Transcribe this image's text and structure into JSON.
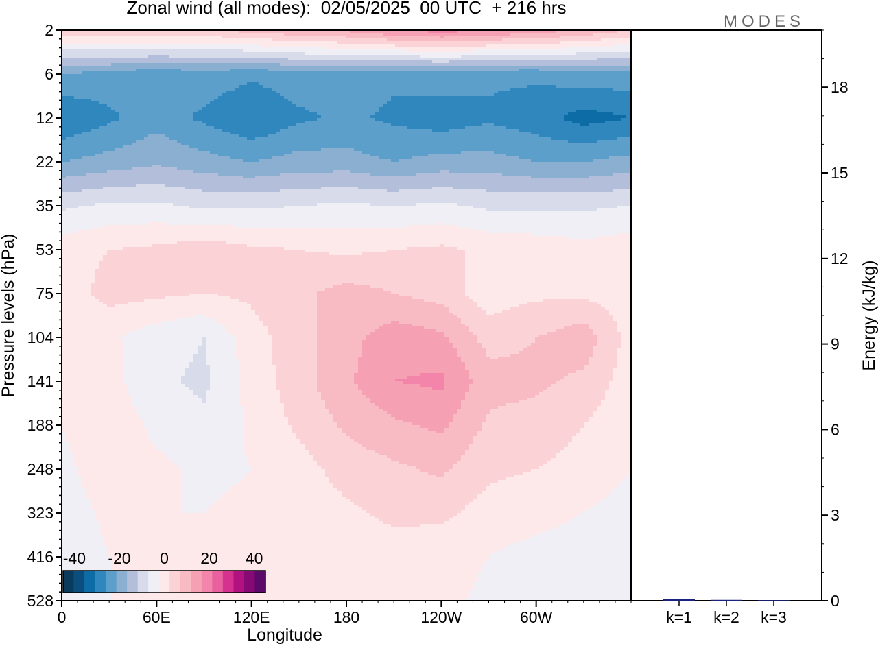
{
  "chart_data": [
    {
      "type": "heatmap",
      "title": "Zonal wind (all modes):  02/05/2025  00 UTC  + 216 hrs",
      "xlabel": "Longitude",
      "ylabel": "Pressure levels (hPa)",
      "x_ticks": [
        "0",
        "60E",
        "120E",
        "180",
        "120W",
        "60W"
      ],
      "y_ticks": [
        "2",
        "6",
        "12",
        "22",
        "35",
        "53",
        "75",
        "104",
        "141",
        "188",
        "248",
        "323",
        "416",
        "528"
      ],
      "colorbar": {
        "ticks": [
          "-40",
          "-20",
          "0",
          "20",
          "40"
        ],
        "range": [
          -45,
          45
        ],
        "step": 5,
        "colors": [
          "#0b3b5c",
          "#0b4e7e",
          "#0d6ca6",
          "#2f87bd",
          "#5c9fca",
          "#8aafd1",
          "#b3bedb",
          "#d8dbea",
          "#f1eff6",
          "#fde9ea",
          "#fbd3d7",
          "#f9bbc3",
          "#f6a0b3",
          "#f285a9",
          "#e8609d",
          "#d6318f",
          "#b2127f",
          "#870974",
          "#5c0a6a"
        ]
      },
      "field_grid": {
        "longitudes": [
          0,
          30,
          60,
          90,
          120,
          150,
          180,
          210,
          240,
          270,
          300,
          330,
          360
        ],
        "levels": [
          2,
          6,
          12,
          22,
          35,
          53,
          75,
          104,
          141,
          188,
          248,
          323,
          416,
          528
        ],
        "u": [
          [
            8,
            10,
            10,
            9,
            12,
            14,
            16,
            20,
            22,
            20,
            18,
            14,
            10
          ],
          [
            -20,
            -22,
            -24,
            -22,
            -24,
            -22,
            -22,
            -24,
            -22,
            -24,
            -24,
            -22,
            -22
          ],
          [
            -30,
            -26,
            -22,
            -26,
            -30,
            -26,
            -24,
            -26,
            -28,
            -26,
            -28,
            -32,
            -30
          ],
          [
            -20,
            -18,
            -16,
            -18,
            -20,
            -18,
            -18,
            -20,
            -18,
            -18,
            -20,
            -20,
            -18
          ],
          [
            -6,
            -4,
            -4,
            -6,
            -6,
            -5,
            -4,
            -5,
            -4,
            -6,
            -6,
            -6,
            -5
          ],
          [
            3,
            5,
            6,
            8,
            6,
            5,
            4,
            5,
            6,
            4,
            3,
            2,
            3
          ],
          [
            2,
            7,
            6,
            5,
            6,
            9,
            12,
            10,
            8,
            2,
            4,
            4,
            2
          ],
          [
            0,
            1,
            -3,
            -5,
            3,
            8,
            13,
            18,
            16,
            8,
            10,
            13,
            3
          ],
          [
            0,
            2,
            -4,
            -6,
            2,
            8,
            14,
            20,
            21,
            12,
            11,
            9,
            2
          ],
          [
            0,
            3,
            -1,
            -4,
            1,
            6,
            11,
            14,
            16,
            9,
            8,
            5,
            1
          ],
          [
            -1,
            2,
            1,
            -1,
            0,
            3,
            7,
            9,
            11,
            6,
            5,
            3,
            0
          ],
          [
            -2,
            1,
            0,
            0,
            1,
            2,
            4,
            6,
            6,
            3,
            2,
            0,
            -2
          ],
          [
            -3,
            0,
            0,
            0,
            1,
            1,
            2,
            3,
            2,
            0,
            -2,
            -3,
            -3
          ],
          [
            -3,
            0,
            0,
            0,
            0,
            1,
            1,
            2,
            1,
            -1,
            -3,
            -3,
            -3
          ]
        ]
      }
    },
    {
      "type": "bar",
      "ylabel": "Energy (kJ/kg)",
      "categories": [
        "k=1",
        "k=2",
        "k=3"
      ],
      "values": [
        0.06,
        0.03,
        0.02
      ],
      "ylim": [
        0,
        20
      ],
      "y_ticks": [
        0,
        3,
        6,
        9,
        12,
        15,
        18
      ],
      "bar_color": "#1a237e"
    }
  ],
  "brand": "MODES"
}
